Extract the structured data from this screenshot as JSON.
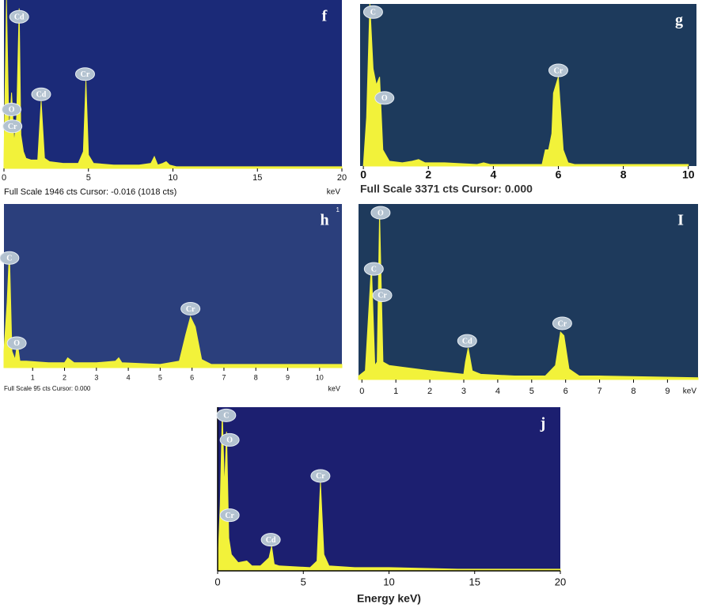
{
  "chart_data": [
    {
      "type": "area",
      "title": "f",
      "background": "#1b2a78",
      "color": "#f2f23a",
      "x": [
        0,
        0.15,
        0.3,
        0.45,
        0.6,
        0.75,
        0.9,
        1.0,
        1.15,
        1.3,
        1.6,
        2.0,
        2.2,
        2.4,
        2.7,
        3.5,
        4.4,
        4.7,
        4.85,
        5.0,
        5.3,
        6.5,
        8.0,
        8.7,
        8.9,
        9.1,
        9.4,
        9.6,
        9.8,
        10.2,
        12,
        15,
        20
      ],
      "values": [
        5,
        100,
        20,
        45,
        15,
        30,
        95,
        20,
        10,
        6,
        5,
        5,
        40,
        6,
        4,
        3,
        3,
        10,
        52,
        8,
        3,
        2,
        2,
        3,
        7,
        2,
        3,
        4,
        2,
        1,
        1,
        1,
        1
      ],
      "xlim": [
        0,
        20
      ],
      "xticks": [
        0,
        5,
        10,
        15,
        20
      ],
      "ylim": [
        0,
        100
      ],
      "unit_label": "keV",
      "footer": "Full Scale 1946 cts Cursor: -0.016  (1018 cts)",
      "peaks": [
        {
          "label": "Cd",
          "x": 0.9,
          "y": 90
        },
        {
          "label": "O",
          "x": 0.45,
          "y": 35
        },
        {
          "label": "Cr",
          "x": 0.5,
          "y": 25
        },
        {
          "label": "Cd",
          "x": 2.2,
          "y": 44
        },
        {
          "label": "Cr",
          "x": 4.8,
          "y": 56
        }
      ]
    },
    {
      "type": "area",
      "title": "g",
      "background": "#1d3a5c",
      "color": "#f2f23a",
      "x": [
        0,
        0.1,
        0.2,
        0.3,
        0.4,
        0.5,
        0.6,
        0.8,
        1.2,
        1.5,
        1.7,
        1.9,
        2.5,
        3.5,
        3.7,
        3.9,
        5.5,
        5.6,
        5.7,
        5.8,
        5.85,
        6.0,
        6.15,
        6.3,
        6.5,
        8,
        10
      ],
      "values": [
        0,
        30,
        100,
        60,
        50,
        55,
        10,
        3,
        2,
        3,
        4,
        2,
        2,
        1,
        2,
        1,
        1,
        10,
        10,
        20,
        45,
        55,
        10,
        2,
        1,
        1,
        1
      ],
      "xlim": [
        -0.1,
        10.25
      ],
      "xticks": [
        0,
        2,
        4,
        6,
        8,
        10
      ],
      "ylim": [
        0,
        100
      ],
      "footer": "Full Scale 3371 cts Cursor: 0.000",
      "peaks": [
        {
          "label": "C",
          "x": 0.3,
          "y": 95
        },
        {
          "label": "O",
          "x": 0.65,
          "y": 42
        },
        {
          "label": "Cr",
          "x": 6.0,
          "y": 59
        }
      ]
    },
    {
      "type": "area",
      "title": "h",
      "corner_label": "1",
      "background": "#2b3f7c",
      "color": "#f2f23a",
      "x": [
        0.1,
        0.2,
        0.27,
        0.35,
        0.45,
        0.52,
        0.6,
        0.8,
        1.5,
        2.0,
        2.1,
        2.3,
        3.0,
        3.6,
        3.7,
        3.8,
        5.0,
        5.6,
        5.8,
        5.95,
        6.1,
        6.3,
        6.6,
        8,
        10.7
      ],
      "values": [
        10,
        40,
        71,
        10,
        5,
        15,
        4,
        4,
        3,
        3,
        6,
        3,
        3,
        4,
        6,
        3,
        2,
        4,
        20,
        31,
        25,
        5,
        2,
        2,
        2
      ],
      "xlim": [
        0.1,
        10.7
      ],
      "xticks": [
        1,
        2,
        3,
        4,
        5,
        6,
        7,
        8,
        9,
        10
      ],
      "ylim": [
        0,
        100
      ],
      "unit_label": "keV",
      "footer": "Full Scale 95 cts Cursor: 0.000",
      "peaks": [
        {
          "label": "C",
          "x": 0.27,
          "y": 67
        },
        {
          "label": "O",
          "x": 0.5,
          "y": 15
        },
        {
          "label": "Cr",
          "x": 5.95,
          "y": 36
        }
      ]
    },
    {
      "type": "area",
      "title": "I",
      "background": "#1e3a5c",
      "color": "#f2f23a",
      "x": [
        -0.1,
        0.1,
        0.28,
        0.38,
        0.45,
        0.52,
        0.62,
        0.8,
        1.2,
        2,
        3,
        3.05,
        3.13,
        3.25,
        3.5,
        4.5,
        5.4,
        5.7,
        5.85,
        5.95,
        6.1,
        6.4,
        7,
        9.9
      ],
      "values": [
        2,
        5,
        65,
        8,
        10,
        95,
        10,
        8,
        7,
        5,
        3,
        10,
        18,
        5,
        3,
        2,
        2,
        8,
        27,
        25,
        6,
        2,
        2,
        1
      ],
      "xlim": [
        -0.1,
        9.9
      ],
      "xticks": [
        0,
        1,
        2,
        3,
        4,
        5,
        6,
        7,
        8,
        9
      ],
      "ylim": [
        0,
        100
      ],
      "unit_label": "keV",
      "peaks": [
        {
          "label": "O",
          "x": 0.55,
          "y": 95
        },
        {
          "label": "C",
          "x": 0.35,
          "y": 63
        },
        {
          "label": "Cr",
          "x": 0.6,
          "y": 48
        },
        {
          "label": "Cd",
          "x": 3.1,
          "y": 22
        },
        {
          "label": "Cr",
          "x": 5.9,
          "y": 32
        }
      ]
    },
    {
      "type": "area",
      "title": "j",
      "background": "#1c1f70",
      "color": "#f2f23a",
      "x": [
        0,
        0.15,
        0.27,
        0.4,
        0.52,
        0.65,
        0.8,
        1.2,
        1.7,
        2.0,
        2.5,
        3.0,
        3.15,
        3.3,
        3.6,
        5.4,
        5.8,
        6.0,
        6.2,
        6.5,
        8,
        10,
        14,
        20
      ],
      "values": [
        2,
        40,
        97,
        50,
        85,
        20,
        10,
        5,
        6,
        3,
        3,
        8,
        15,
        4,
        3,
        2,
        6,
        54,
        10,
        3,
        2,
        2,
        1,
        1
      ],
      "xlim": [
        0,
        20
      ],
      "xticks": [
        0,
        5,
        10,
        15,
        20
      ],
      "ylim": [
        0,
        100
      ],
      "xlabel": "Energy keV)",
      "peaks": [
        {
          "label": "C",
          "x": 0.5,
          "y": 95
        },
        {
          "label": "O",
          "x": 0.7,
          "y": 80
        },
        {
          "label": "Cr",
          "x": 0.7,
          "y": 34
        },
        {
          "label": "Cd",
          "x": 3.1,
          "y": 19
        },
        {
          "label": "Cr",
          "x": 6.0,
          "y": 58
        }
      ]
    }
  ]
}
